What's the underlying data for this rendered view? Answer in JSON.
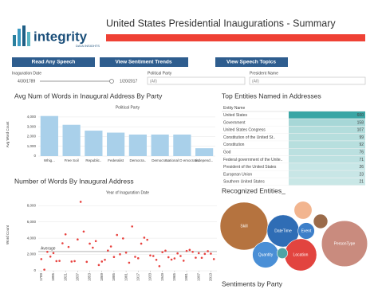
{
  "header": {
    "logo": "integrity",
    "logo_sub": "DATA INSIGHTS",
    "title": "United States Presidential Inaugurations - Summary"
  },
  "buttons": [
    "Read Any Speech",
    "View Sentiment Trends",
    "View Speech Topics"
  ],
  "filters": {
    "date_label": "Inaguration Date",
    "date_start": "4/30/1789",
    "date_end": "1/20/2017",
    "party_label": "Political Party",
    "party_value": "(All)",
    "president_label": "President Name",
    "president_value": "(All)"
  },
  "table": {
    "title": "Top Entities Named in Addresses",
    "header": "Entity Name",
    "rows": [
      [
        "United States",
        600
      ],
      [
        "Government",
        158
      ],
      [
        "United States Congress",
        107
      ],
      [
        "Constitution of the United St..",
        99
      ],
      [
        "Constitution",
        92
      ],
      [
        "God",
        76
      ],
      [
        "Federal government of the Unite..",
        71
      ],
      [
        "President of the United States",
        26
      ],
      [
        "European Union",
        23
      ],
      [
        "Southern United States",
        21
      ]
    ]
  },
  "footer_title": "Sentiments by Party",
  "chart_data": [
    {
      "type": "bar",
      "title": "Avg Num of Words in Inaugural Address By Party",
      "subtitle": "Political Party",
      "y_label": "Avg Word Count",
      "color": "#a9d0ea",
      "categories": [
        "Whig...",
        "Free Soil",
        "Republic..",
        "Federalist",
        "Democra..",
        "Democra..",
        "National D emocratic",
        "Independ..."
      ],
      "values": [
        4100,
        3200,
        2600,
        2400,
        2200,
        2200,
        2200,
        800
      ],
      "ylim": [
        0,
        4400
      ],
      "yticks": [
        0,
        {
          "value": 1000,
          "label": "1,000"
        },
        {
          "value": 2000,
          "label": "2,000"
        },
        {
          "value": 3000,
          "label": "3,000"
        },
        {
          "value": 4000,
          "label": "4,000"
        }
      ]
    },
    {
      "type": "scatter",
      "title": "Number of Words By Inaugural Address",
      "subtitle": "Year of Inaguration Date",
      "y_label": "Word Count",
      "color": "#e8423f",
      "reference_line": {
        "label": "Average",
        "value": 2350
      },
      "x": [
        1789,
        1793,
        1797,
        1801,
        1805,
        1809,
        1813,
        1817,
        1821,
        1825,
        1829,
        1833,
        1837,
        1841,
        1845,
        1849,
        1853,
        1857,
        1861,
        1865,
        1869,
        1873,
        1877,
        1881,
        1885,
        1889,
        1893,
        1897,
        1901,
        1905,
        1909,
        1913,
        1917,
        1921,
        1925,
        1929,
        1933,
        1937,
        1941,
        1945,
        1949,
        1953,
        1957,
        1961,
        1965,
        1969,
        1973,
        1977,
        1981,
        1985,
        1989,
        1993,
        1997,
        2001,
        2005,
        2009,
        2013,
        2017
      ],
      "values": [
        1430,
        135,
        2320,
        1730,
        2170,
        1180,
        1210,
        3370,
        4470,
        2920,
        1130,
        1180,
        3840,
        8460,
        4810,
        1090,
        3330,
        2830,
        3640,
        700,
        1130,
        1340,
        2480,
        2980,
        1690,
        4390,
        2020,
        3970,
        2220,
        985,
        5440,
        1710,
        1530,
        3330,
        4060,
        3800,
        1880,
        1810,
        1340,
        560,
        2280,
        2460,
        1660,
        1370,
        1510,
        2130,
        1810,
        1230,
        2430,
        2560,
        2320,
        1600,
        2160,
        1590,
        2070,
        2400,
        2100,
        1430
      ],
      "xlim": [
        1785,
        2021
      ],
      "xticks": [
        1789,
        1805,
        1821,
        1837,
        1853,
        1869,
        1885,
        1901,
        1917,
        1933,
        1949,
        1965,
        1981,
        1997,
        2013
      ],
      "ylim": [
        0,
        8800
      ],
      "yticks": [
        0,
        {
          "value": 2000,
          "label": "2,000"
        },
        {
          "value": 4000,
          "label": "4,000"
        },
        {
          "value": 6000,
          "label": "6,000"
        },
        {
          "value": 8000,
          "label": "8,000"
        }
      ]
    },
    {
      "type": "bubble",
      "title": "Recognized Entities_",
      "categories": [
        "Skill",
        "PersonType",
        "DateTime",
        "Location",
        "Quantity",
        "Event",
        null,
        null,
        null
      ],
      "values": [
        100,
        92,
        45,
        45,
        30,
        12,
        14,
        9,
        5
      ],
      "colors": [
        "#b5733f",
        "#c98b7e",
        "#2f6db5",
        "#e2443f",
        "#4a8fd6",
        "#3d7fc9",
        "#f2b58f",
        "#9b6b4a",
        "#4fa3a5"
      ]
    }
  ]
}
